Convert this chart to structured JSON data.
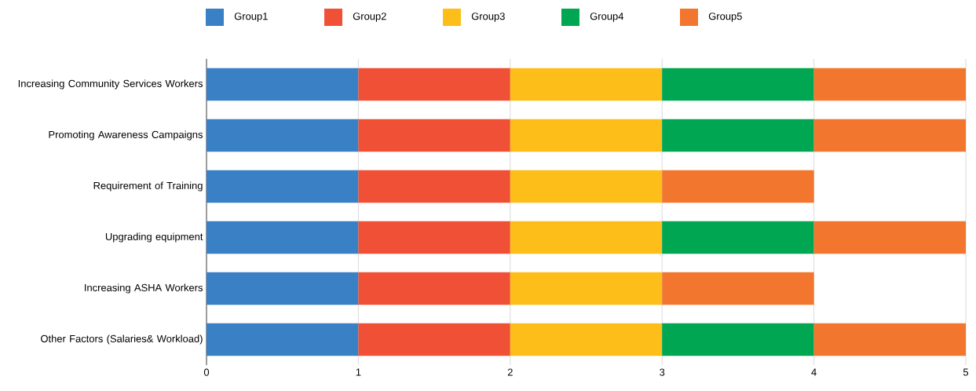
{
  "chart_data": {
    "type": "bar",
    "orientation": "horizontal",
    "stacked": true,
    "categories": [
      "Increasing Community Services Workers",
      "Promoting Awareness Campaigns",
      "Requirement of Training",
      "Upgrading equipment",
      "Increasing ASHA Workers",
      "Other Factors (Salaries& Workload)"
    ],
    "series": [
      {
        "name": "Group1",
        "color": "#3a80c5",
        "values": [
          1,
          1,
          1,
          1,
          1,
          1
        ]
      },
      {
        "name": "Group2",
        "color": "#ef5036",
        "values": [
          1,
          1,
          1,
          1,
          1,
          1
        ]
      },
      {
        "name": "Group3",
        "color": "#fdbe1a",
        "values": [
          1,
          1,
          1,
          1,
          1,
          1
        ]
      },
      {
        "name": "Group4",
        "color": "#00a651",
        "values": [
          1,
          1,
          null,
          1,
          null,
          1
        ]
      },
      {
        "name": "Group5",
        "color": "#f3762f",
        "values": [
          1,
          1,
          1,
          1,
          1,
          1
        ]
      }
    ],
    "xlim": [
      0,
      5
    ],
    "xticks": [
      0,
      1,
      2,
      3,
      4,
      5
    ],
    "grid": "x",
    "legend": "top"
  }
}
